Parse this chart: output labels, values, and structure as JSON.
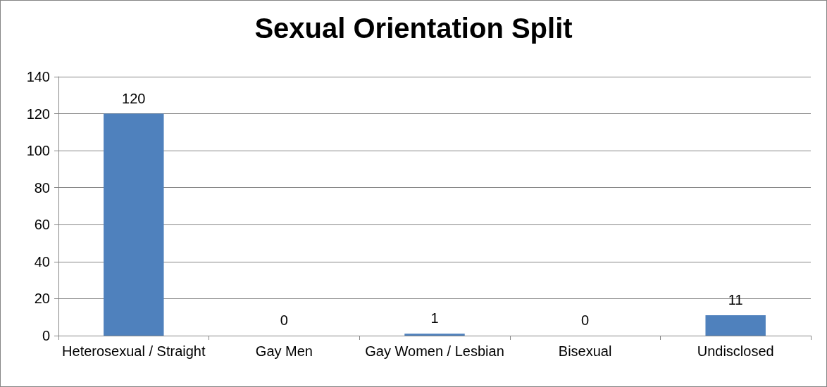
{
  "chart_data": {
    "type": "bar",
    "title": "Sexual Orientation Split",
    "categories": [
      "Heterosexual / Straight",
      "Gay Men",
      "Gay Women / Lesbian",
      "Bisexual",
      "Undisclosed"
    ],
    "values": [
      120,
      0,
      1,
      0,
      11
    ],
    "color": "#4f81bd",
    "ylim": [
      0,
      140
    ],
    "yticks": [
      0,
      20,
      40,
      60,
      80,
      100,
      120,
      140
    ],
    "grid": "y",
    "data_labels": true
  }
}
